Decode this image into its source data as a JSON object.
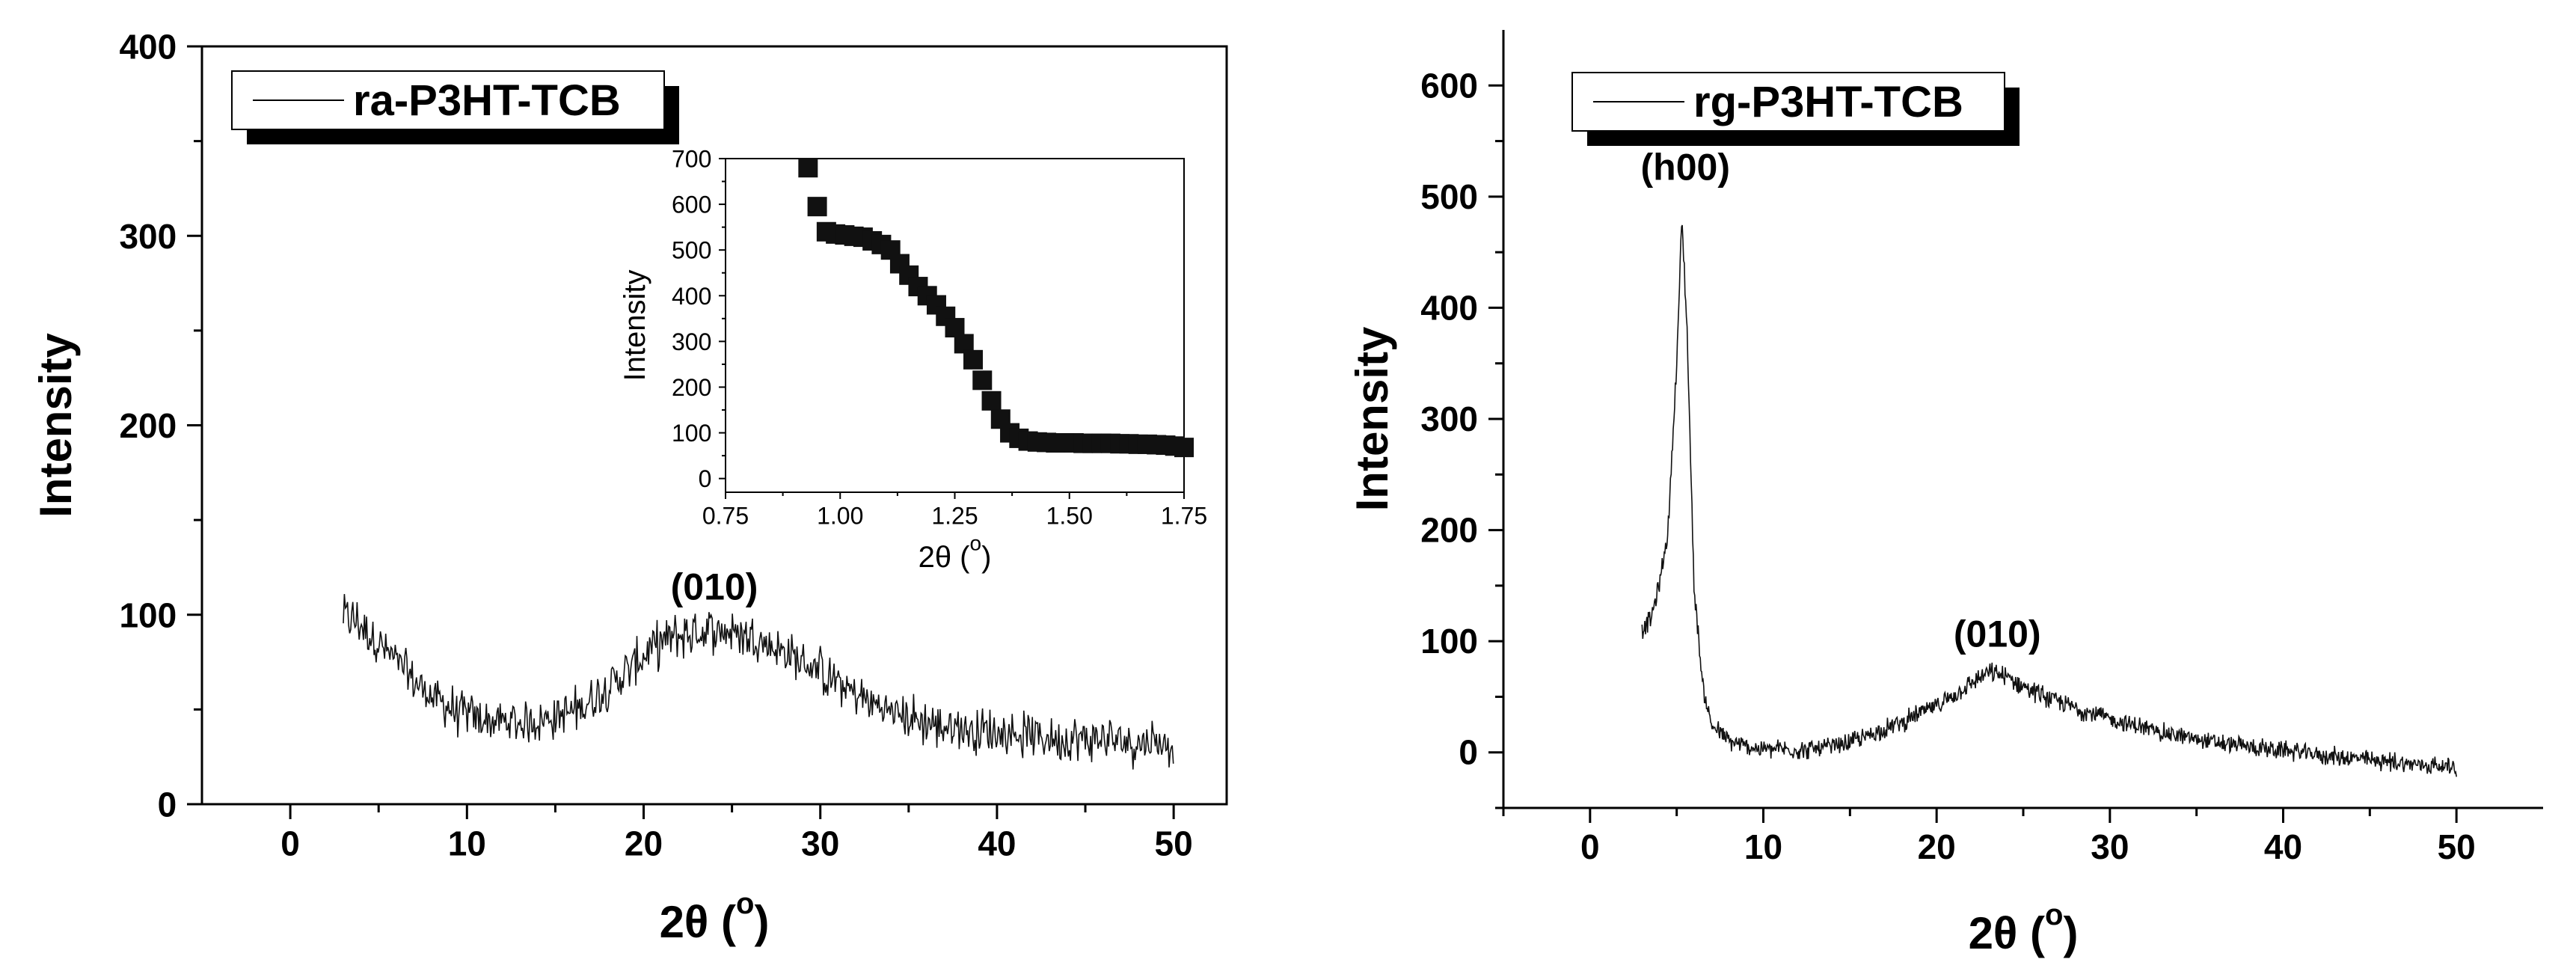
{
  "chart_data": [
    {
      "id": "left",
      "type": "line",
      "title": "",
      "legend": "ra-P3HT-TCB",
      "legend_position": "top-left",
      "xlabel": "2θ (",
      "xlabel_sup": "o",
      "xlabel_close": ")",
      "ylabel": "Intensity",
      "xlim": [
        -5,
        53
      ],
      "ylim": [
        0,
        400
      ],
      "xticks": [
        0,
        10,
        20,
        30,
        40,
        50
      ],
      "xtick_labels": [
        "0",
        "10",
        "20",
        "30",
        "40",
        "50"
      ],
      "yticks": [
        0,
        100,
        200,
        300,
        400
      ],
      "ytick_labels": [
        "0",
        "100",
        "200",
        "300",
        "400"
      ],
      "grid": false,
      "annotations": [
        {
          "text": "(010)",
          "x": 24,
          "y": 108
        }
      ],
      "series": [
        {
          "name": "ra-P3HT-TCB",
          "x": [
            3,
            4,
            5,
            6,
            7,
            8,
            9,
            10,
            11,
            12,
            13,
            14,
            15,
            16,
            17,
            18,
            19,
            20,
            21,
            22,
            23,
            24,
            25,
            26,
            27,
            28,
            29,
            30,
            31,
            32,
            33,
            34,
            35,
            36,
            37,
            38,
            39,
            40,
            41,
            42,
            43,
            44,
            45,
            46,
            47,
            48,
            49,
            50
          ],
          "y": [
            100,
            95,
            85,
            75,
            65,
            57,
            51,
            47,
            44,
            43,
            43,
            44,
            46,
            49,
            55,
            62,
            70,
            78,
            85,
            89,
            91,
            92,
            91,
            89,
            85,
            80,
            75,
            70,
            64,
            58,
            53,
            49,
            46,
            43,
            41,
            40,
            39,
            38,
            37,
            36,
            35,
            35,
            34,
            34,
            33,
            33,
            33,
            32
          ],
          "noise": 10
        }
      ],
      "inset": {
        "type": "scatter",
        "xlabel": "2θ (",
        "xlabel_sup": "o",
        "xlabel_close": ")",
        "ylabel": "Intensity",
        "xlim": [
          0.75,
          1.75
        ],
        "ylim": [
          -30,
          700
        ],
        "xticks": [
          0.75,
          1.0,
          1.25,
          1.5,
          1.75
        ],
        "xtick_labels": [
          "0.75",
          "1.00",
          "1.25",
          "1.50",
          "1.75"
        ],
        "yticks": [
          0,
          100,
          200,
          300,
          400,
          500,
          600,
          700
        ],
        "ytick_labels": [
          "0",
          "100",
          "200",
          "300",
          "400",
          "500",
          "600",
          "700"
        ],
        "series": [
          {
            "name": "ra-P3HT-TCB",
            "x": [
              0.93,
              0.95,
              0.97,
              0.99,
              1.01,
              1.03,
              1.05,
              1.07,
              1.09,
              1.11,
              1.13,
              1.15,
              1.17,
              1.19,
              1.21,
              1.23,
              1.25,
              1.27,
              1.29,
              1.31,
              1.33,
              1.35,
              1.37,
              1.39,
              1.41,
              1.43,
              1.45,
              1.47,
              1.49,
              1.51,
              1.53,
              1.55,
              1.57,
              1.59,
              1.61,
              1.63,
              1.65,
              1.67,
              1.69,
              1.71,
              1.73,
              1.75
            ],
            "y": [
              680,
              595,
              540,
              535,
              533,
              530,
              528,
              520,
              512,
              500,
              470,
              445,
              420,
              400,
              380,
              355,
              330,
              295,
              260,
              215,
              170,
              130,
              100,
              88,
              82,
              80,
              79,
              78,
              78,
              78,
              77,
              77,
              77,
              77,
              76,
              76,
              75,
              75,
              74,
              73,
              71,
              68
            ]
          }
        ]
      }
    },
    {
      "id": "right",
      "type": "line",
      "title": "",
      "legend": "rg-P3HT-TCB",
      "legend_position": "top-left",
      "xlabel": "2θ (",
      "xlabel_sup": "o",
      "xlabel_close": ")",
      "ylabel": "Intensity",
      "xlim": [
        -5,
        55
      ],
      "ylim": [
        -50,
        650
      ],
      "xticks": [
        0,
        10,
        20,
        30,
        40,
        50
      ],
      "xtick_labels": [
        "0",
        "10",
        "20",
        "30",
        "40",
        "50"
      ],
      "yticks": [
        0,
        100,
        200,
        300,
        400,
        500,
        600
      ],
      "ytick_labels": [
        "0",
        "100",
        "200",
        "300",
        "400",
        "500",
        "600"
      ],
      "grid": false,
      "annotations": [
        {
          "text": "(h00)",
          "x": 5.5,
          "y": 515
        },
        {
          "text": "(010)",
          "x": 23.5,
          "y": 95
        }
      ],
      "series": [
        {
          "name": "rg-P3HT-TCB",
          "x": [
            3,
            3.5,
            4,
            4.5,
            5,
            5.3,
            5.6,
            6,
            6.5,
            7,
            8,
            9,
            10,
            11,
            12,
            13,
            14,
            15,
            16,
            17,
            18,
            19,
            20,
            21,
            22,
            23,
            24,
            25,
            26,
            27,
            28,
            29,
            30,
            31,
            32,
            33,
            34,
            35,
            36,
            37,
            38,
            39,
            40,
            41,
            42,
            43,
            44,
            45,
            46,
            47,
            48,
            49,
            50
          ],
          "y": [
            110,
            120,
            150,
            200,
            350,
            480,
            380,
            150,
            60,
            25,
            10,
            5,
            3,
            3,
            2,
            3,
            5,
            9,
            15,
            21,
            27,
            35,
            42,
            52,
            62,
            72,
            68,
            60,
            52,
            46,
            40,
            35,
            30,
            26,
            22,
            18,
            15,
            12,
            9,
            7,
            5,
            3,
            2,
            0,
            -2,
            -4,
            -5,
            -7,
            -8,
            -10,
            -11,
            -12,
            -13
          ],
          "noise": 7
        }
      ]
    }
  ]
}
